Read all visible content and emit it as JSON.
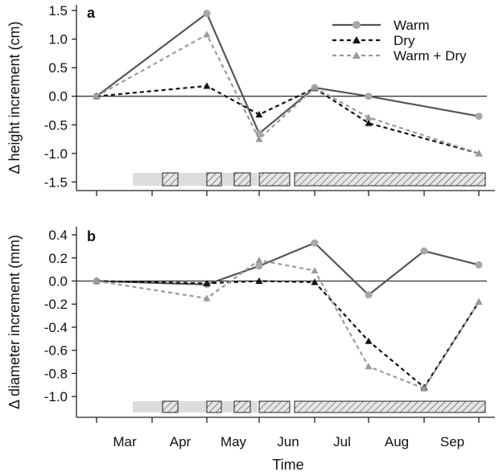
{
  "chart_data": [
    {
      "panel": "a",
      "type": "line",
      "ylabel": "Δ height increment (cm)",
      "xlabel": "",
      "ylim": [
        -1.65,
        1.6
      ],
      "yticks": [
        "1.5",
        "1.0",
        "0.5",
        "0.0",
        "-0.5",
        "-1.0",
        "-1.5"
      ],
      "reference_line": 0,
      "grid": false,
      "legend": "top-right",
      "series": [
        {
          "name": "Warm",
          "color": "#555555",
          "line": "solid",
          "marker": "circle",
          "points": [
            [
              "Mar",
              0.0
            ],
            [
              "May",
              1.45
            ],
            [
              "Jun",
              -0.65
            ],
            [
              "Jul",
              0.15
            ],
            [
              "Aug",
              0.0
            ],
            [
              "Sep",
              -0.35
            ]
          ]
        },
        {
          "name": "Dry",
          "color": "#111111",
          "line": "dashed",
          "marker": "triangle",
          "points": [
            [
              "Mar",
              0.0
            ],
            [
              "May",
              0.18
            ],
            [
              "Jun",
              -0.32
            ],
            [
              "Jul",
              0.14
            ],
            [
              "Aug",
              -0.47
            ],
            [
              "Sep",
              -1.0
            ]
          ]
        },
        {
          "name": "Warm + Dry",
          "color": "#9a9a9a",
          "line": "dashed",
          "marker": "triangle",
          "points": [
            [
              "Mar",
              0.0
            ],
            [
              "May",
              1.08
            ],
            [
              "Jun",
              -0.75
            ],
            [
              "Jul",
              0.15
            ],
            [
              "Aug",
              -0.37
            ],
            [
              "Sep",
              -1.0
            ]
          ]
        }
      ],
      "treatment_bar": {
        "light_span": [
          "Mar",
          "Jun"
        ],
        "hatched_spans": [
          [
            "Apr",
            "Apr"
          ],
          [
            "May",
            "May"
          ],
          [
            "May",
            "Jun"
          ],
          [
            "Jun",
            "Jun"
          ],
          [
            "Jul",
            "Sep"
          ]
        ]
      }
    },
    {
      "panel": "b",
      "type": "line",
      "ylabel": "Δ diameter increment (mm)",
      "xlabel": "Time",
      "ylim": [
        -1.18,
        0.47
      ],
      "yticks": [
        "0.4",
        "0.2",
        "0.0",
        "-0.2",
        "-0.4",
        "-0.6",
        "-0.8",
        "-1.0"
      ],
      "reference_line": 0,
      "grid": false,
      "series": [
        {
          "name": "Warm",
          "color": "#555555",
          "line": "solid",
          "marker": "circle",
          "points": [
            [
              "Mar",
              0.0
            ],
            [
              "May",
              -0.03
            ],
            [
              "Jun",
              0.13
            ],
            [
              "Jul",
              0.33
            ],
            [
              "Aug",
              -0.12
            ],
            [
              "Aug-Sep",
              0.26
            ],
            [
              "Sep",
              0.14
            ]
          ]
        },
        {
          "name": "Dry",
          "color": "#111111",
          "line": "dashed",
          "marker": "triangle",
          "points": [
            [
              "Mar",
              0.0
            ],
            [
              "May",
              -0.02
            ],
            [
              "Jun",
              0.0
            ],
            [
              "Jul",
              -0.01
            ],
            [
              "Aug",
              -0.52
            ],
            [
              "Aug-Sep",
              -0.92
            ],
            [
              "Sep",
              -0.18
            ]
          ]
        },
        {
          "name": "Warm + Dry",
          "color": "#9a9a9a",
          "line": "dashed",
          "marker": "triangle",
          "points": [
            [
              "Mar",
              0.0
            ],
            [
              "May",
              -0.15
            ],
            [
              "Jun",
              0.18
            ],
            [
              "Jul",
              0.09
            ],
            [
              "Aug",
              -0.74
            ],
            [
              "Aug-Sep",
              -0.93
            ],
            [
              "Sep",
              -0.18
            ]
          ]
        }
      ],
      "treatment_bar": {
        "light_span": [
          "Mar",
          "Jun"
        ],
        "hatched_spans": [
          [
            "Apr",
            "Apr"
          ],
          [
            "May",
            "May"
          ],
          [
            "May",
            "Jun"
          ],
          [
            "Jun",
            "Jun"
          ],
          [
            "Jul",
            "Sep"
          ]
        ]
      }
    }
  ],
  "x_axis": {
    "title": "Time",
    "months": [
      "Mar",
      "Apr",
      "May",
      "Jun",
      "Jul",
      "Aug",
      "Sep"
    ]
  }
}
